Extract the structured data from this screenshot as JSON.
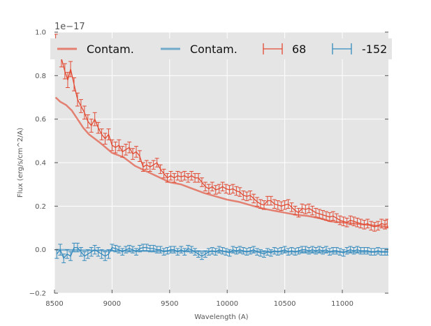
{
  "chart_data": {
    "type": "line",
    "title": "",
    "offset_label": "1e−17",
    "xlabel": "Wavelength (A)",
    "ylabel": "Flux (erg/s/cm^2/A)",
    "xlim": [
      8500,
      11400
    ],
    "ylim": [
      -0.2,
      1.0
    ],
    "xticks": [
      8500,
      9000,
      9500,
      10000,
      10500,
      11000
    ],
    "yticks": [
      -0.2,
      0.0,
      0.2,
      0.4,
      0.6,
      0.8,
      1.0
    ],
    "ytick_labels": [
      "−0.2",
      "0.0",
      "0.2",
      "0.4",
      "0.6",
      "0.8",
      "1.0"
    ],
    "grid": true,
    "legend_position": "top",
    "legend": [
      {
        "label": "Contam.",
        "kind": "line",
        "color": "#e24a33"
      },
      {
        "label": "Contam.",
        "kind": "line",
        "color": "#348abd"
      },
      {
        "label": "68",
        "kind": "errorbar",
        "color": "#e24a33"
      },
      {
        "label": "-152",
        "kind": "errorbar",
        "color": "#348abd"
      }
    ],
    "contamination": [
      {
        "name": "Contam.",
        "color": "#e24a33",
        "x": [
          8510,
          8550,
          8600,
          8650,
          8700,
          8750,
          8800,
          8900,
          9000,
          9100,
          9200,
          9300,
          9400,
          9500,
          9600,
          9700,
          9800,
          9900,
          10000,
          10100,
          10200,
          10300,
          10400,
          10500,
          10600,
          10700,
          10800,
          10900,
          11000,
          11100,
          11200,
          11300,
          11400
        ],
        "y": [
          0.7,
          0.68,
          0.665,
          0.64,
          0.6,
          0.56,
          0.53,
          0.49,
          0.445,
          0.425,
          0.385,
          0.36,
          0.335,
          0.31,
          0.3,
          0.28,
          0.26,
          0.245,
          0.23,
          0.22,
          0.205,
          0.19,
          0.18,
          0.17,
          0.16,
          0.155,
          0.145,
          0.13,
          0.125,
          0.12,
          0.115,
          0.11,
          0.105
        ]
      },
      {
        "name": "Contam.",
        "color": "#348abd",
        "x": [
          8510,
          8800,
          9100,
          9400,
          9700,
          10000,
          10300,
          10600,
          10900,
          11200,
          11400
        ],
        "y": [
          0.0,
          -0.003,
          -0.005,
          -0.006,
          -0.007,
          -0.008,
          -0.008,
          -0.009,
          -0.01,
          -0.01,
          -0.01
        ]
      }
    ],
    "series": [
      {
        "name": "68",
        "color": "#e24a33",
        "x": [
          8510,
          8560,
          8590,
          8615,
          8640,
          8670,
          8700,
          8730,
          8760,
          8790,
          8820,
          8850,
          8880,
          8910,
          8940,
          8970,
          9000,
          9030,
          9060,
          9090,
          9120,
          9150,
          9180,
          9210,
          9240,
          9270,
          9300,
          9330,
          9360,
          9390,
          9420,
          9450,
          9480,
          9510,
          9540,
          9570,
          9600,
          9630,
          9660,
          9690,
          9720,
          9750,
          9780,
          9810,
          9840,
          9870,
          9900,
          9930,
          9960,
          9990,
          10020,
          10050,
          10080,
          10110,
          10140,
          10170,
          10200,
          10230,
          10260,
          10290,
          10320,
          10350,
          10380,
          10410,
          10440,
          10470,
          10500,
          10530,
          10560,
          10590,
          10620,
          10650,
          10680,
          10710,
          10740,
          10770,
          10800,
          10830,
          10860,
          10890,
          10920,
          10950,
          10980,
          11010,
          11040,
          11070,
          11100,
          11130,
          11160,
          11190,
          11220,
          11250,
          11280,
          11310,
          11340,
          11370,
          11390
        ],
        "y": [
          0.95,
          0.88,
          0.82,
          0.78,
          0.83,
          0.76,
          0.69,
          0.66,
          0.63,
          0.59,
          0.57,
          0.6,
          0.56,
          0.53,
          0.51,
          0.53,
          0.48,
          0.47,
          0.48,
          0.45,
          0.46,
          0.47,
          0.44,
          0.45,
          0.43,
          0.38,
          0.39,
          0.38,
          0.39,
          0.4,
          0.37,
          0.35,
          0.33,
          0.34,
          0.33,
          0.34,
          0.335,
          0.34,
          0.33,
          0.34,
          0.33,
          0.33,
          0.31,
          0.29,
          0.28,
          0.29,
          0.275,
          0.28,
          0.29,
          0.28,
          0.275,
          0.28,
          0.27,
          0.265,
          0.25,
          0.245,
          0.25,
          0.235,
          0.22,
          0.21,
          0.205,
          0.225,
          0.225,
          0.21,
          0.205,
          0.2,
          0.205,
          0.21,
          0.195,
          0.18,
          0.17,
          0.19,
          0.185,
          0.19,
          0.18,
          0.17,
          0.165,
          0.16,
          0.155,
          0.15,
          0.155,
          0.145,
          0.135,
          0.13,
          0.125,
          0.135,
          0.13,
          0.125,
          0.12,
          0.115,
          0.12,
          0.11,
          0.105,
          0.11,
          0.12,
          0.115,
          0.12
        ],
        "err": [
          0.04,
          0.04,
          0.035,
          0.035,
          0.035,
          0.03,
          0.03,
          0.03,
          0.03,
          0.03,
          0.03,
          0.03,
          0.025,
          0.025,
          0.025,
          0.025,
          0.025,
          0.025,
          0.025,
          0.025,
          0.025,
          0.025,
          0.025,
          0.025,
          0.025,
          0.02,
          0.02,
          0.02,
          0.02,
          0.02,
          0.02,
          0.02,
          0.02,
          0.02,
          0.02,
          0.02,
          0.02,
          0.02,
          0.02,
          0.02,
          0.02,
          0.02,
          0.02,
          0.02,
          0.02,
          0.02,
          0.02,
          0.02,
          0.02,
          0.02,
          0.02,
          0.02,
          0.02,
          0.02,
          0.02,
          0.02,
          0.02,
          0.02,
          0.02,
          0.02,
          0.02,
          0.02,
          0.02,
          0.02,
          0.02,
          0.02,
          0.02,
          0.02,
          0.02,
          0.02,
          0.02,
          0.02,
          0.02,
          0.02,
          0.02,
          0.02,
          0.02,
          0.02,
          0.02,
          0.02,
          0.02,
          0.02,
          0.02,
          0.02,
          0.02,
          0.02,
          0.02,
          0.02,
          0.02,
          0.02,
          0.02,
          0.02,
          0.02,
          0.02,
          0.02,
          0.02,
          0.02
        ]
      },
      {
        "name": "-152",
        "color": "#348abd",
        "x": [
          8520,
          8550,
          8580,
          8610,
          8640,
          8670,
          8700,
          8730,
          8760,
          8790,
          8820,
          8850,
          8880,
          8910,
          8940,
          8970,
          9000,
          9030,
          9060,
          9090,
          9120,
          9150,
          9180,
          9210,
          9240,
          9270,
          9300,
          9330,
          9360,
          9390,
          9420,
          9450,
          9480,
          9510,
          9540,
          9570,
          9600,
          9630,
          9660,
          9690,
          9720,
          9750,
          9780,
          9810,
          9840,
          9870,
          9900,
          9930,
          9960,
          9990,
          10020,
          10050,
          10080,
          10110,
          10140,
          10170,
          10200,
          10230,
          10260,
          10290,
          10320,
          10350,
          10380,
          10410,
          10440,
          10470,
          10500,
          10530,
          10560,
          10590,
          10620,
          10650,
          10680,
          10710,
          10740,
          10770,
          10800,
          10830,
          10860,
          10890,
          10920,
          10950,
          10980,
          11010,
          11040,
          11070,
          11100,
          11130,
          11160,
          11190,
          11220,
          11250,
          11280,
          11310,
          11340,
          11370,
          11390
        ],
        "y": [
          -0.02,
          0.0,
          -0.04,
          -0.02,
          -0.03,
          0.01,
          0.01,
          -0.01,
          -0.03,
          -0.02,
          -0.01,
          0.0,
          -0.01,
          -0.02,
          -0.03,
          -0.02,
          0.01,
          0.005,
          0.0,
          -0.01,
          0.0,
          0.005,
          0.0,
          -0.01,
          0.005,
          0.01,
          0.01,
          0.005,
          0.005,
          0.0,
          0.0,
          -0.01,
          -0.005,
          0.0,
          0.0,
          -0.01,
          0.0,
          -0.01,
          0.005,
          0.0,
          -0.01,
          -0.02,
          -0.03,
          -0.02,
          -0.01,
          -0.005,
          -0.01,
          0.0,
          -0.005,
          -0.01,
          -0.015,
          0.0,
          -0.005,
          0.0,
          -0.005,
          -0.01,
          -0.005,
          0.0,
          -0.01,
          -0.015,
          -0.02,
          -0.01,
          -0.015,
          -0.005,
          -0.01,
          -0.005,
          0.0,
          -0.01,
          -0.005,
          -0.01,
          -0.005,
          0.0,
          0.0,
          -0.005,
          0.0,
          -0.005,
          0.0,
          -0.005,
          0.0,
          -0.01,
          -0.005,
          -0.005,
          -0.01,
          -0.015,
          -0.005,
          0.0,
          -0.005,
          0.0,
          -0.005,
          -0.005,
          -0.005,
          -0.01,
          -0.01,
          -0.005,
          -0.01,
          -0.01,
          -0.01
        ],
        "err": [
          0.02,
          0.025,
          0.02,
          0.02,
          0.02,
          0.02,
          0.02,
          0.02,
          0.02,
          0.02,
          0.02,
          0.02,
          0.02,
          0.02,
          0.02,
          0.02,
          0.015,
          0.015,
          0.015,
          0.015,
          0.015,
          0.015,
          0.015,
          0.015,
          0.015,
          0.015,
          0.015,
          0.015,
          0.015,
          0.015,
          0.015,
          0.015,
          0.015,
          0.015,
          0.015,
          0.015,
          0.015,
          0.015,
          0.015,
          0.015,
          0.015,
          0.015,
          0.015,
          0.015,
          0.015,
          0.015,
          0.015,
          0.015,
          0.015,
          0.015,
          0.015,
          0.015,
          0.015,
          0.015,
          0.015,
          0.015,
          0.015,
          0.015,
          0.015,
          0.015,
          0.015,
          0.015,
          0.015,
          0.015,
          0.015,
          0.015,
          0.015,
          0.015,
          0.015,
          0.015,
          0.015,
          0.015,
          0.015,
          0.015,
          0.015,
          0.015,
          0.015,
          0.015,
          0.015,
          0.015,
          0.015,
          0.015,
          0.015,
          0.015,
          0.015,
          0.015,
          0.015,
          0.015,
          0.015,
          0.015,
          0.015,
          0.015,
          0.015,
          0.015,
          0.015,
          0.015,
          0.015
        ]
      }
    ]
  }
}
